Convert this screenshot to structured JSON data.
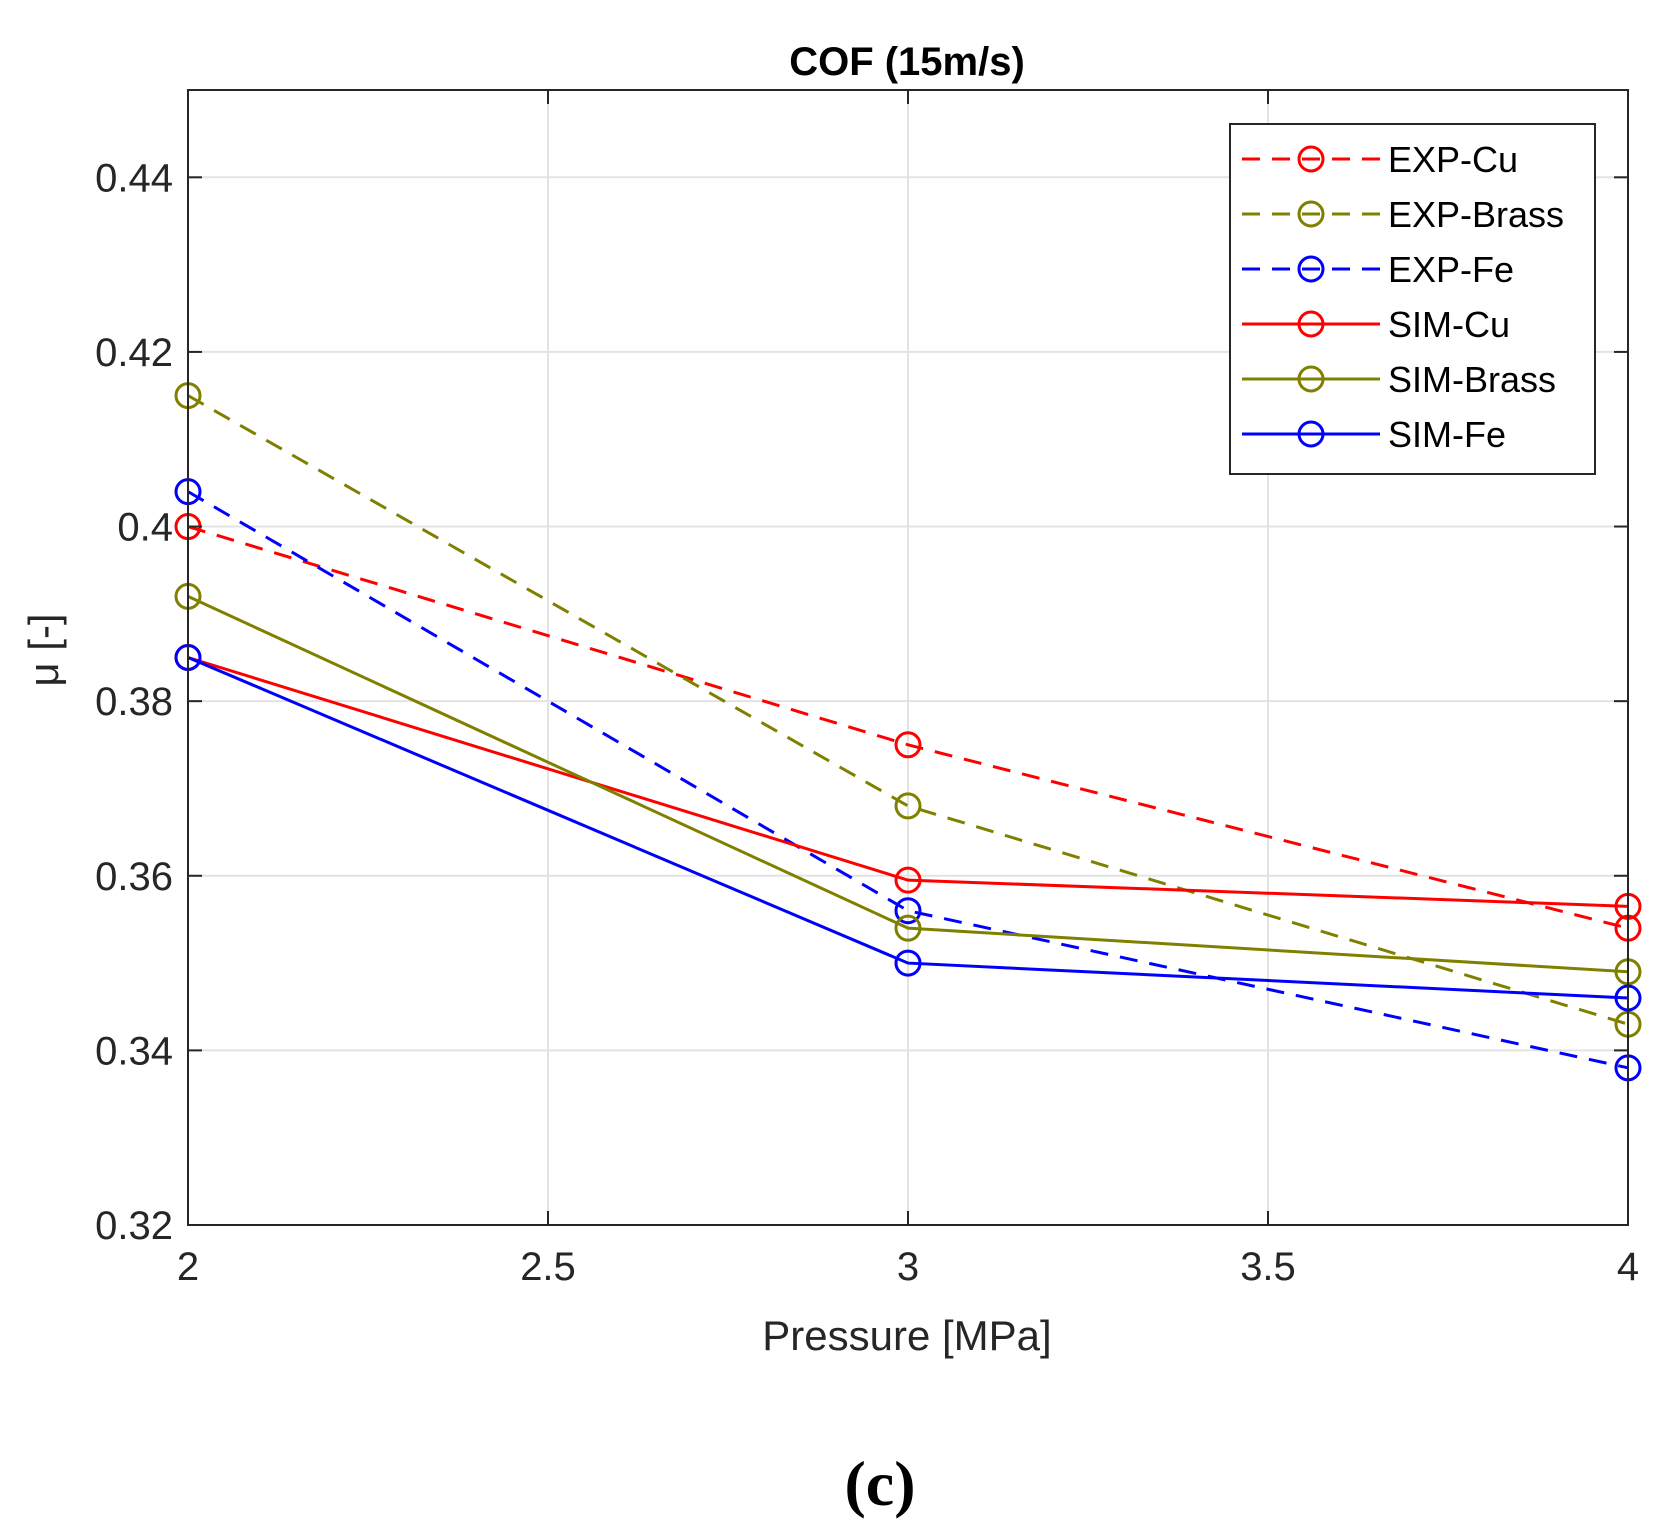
{
  "chart_data": {
    "type": "line",
    "title": "COF (15m/s)",
    "xlabel": "Pressure [MPa]",
    "ylabel": "μ [-]",
    "xlim": [
      2,
      4
    ],
    "ylim": [
      0.32,
      0.45
    ],
    "xticks": [
      2,
      2.5,
      3,
      3.5,
      4
    ],
    "xtick_labels": [
      "2",
      "2.5",
      "3",
      "3.5",
      "4"
    ],
    "yticks": [
      0.32,
      0.34,
      0.36,
      0.38,
      0.4,
      0.42,
      0.44
    ],
    "ytick_labels": [
      "0.32",
      "0.34",
      "0.36",
      "0.38",
      "0.4",
      "0.42",
      "0.44"
    ],
    "grid": true,
    "legend_position": "top-right",
    "x": [
      2,
      3,
      4
    ],
    "series": [
      {
        "name": "EXP-Cu",
        "values": [
          0.4,
          0.375,
          0.354
        ],
        "color": "#ff0000",
        "dash": "dashed",
        "marker": "circle"
      },
      {
        "name": "EXP-Brass",
        "values": [
          0.415,
          0.368,
          0.343
        ],
        "color": "#808000",
        "dash": "dashed",
        "marker": "circle"
      },
      {
        "name": "EXP-Fe",
        "values": [
          0.404,
          0.356,
          0.338
        ],
        "color": "#0000ff",
        "dash": "dashed",
        "marker": "circle"
      },
      {
        "name": "SIM-Cu",
        "values": [
          0.385,
          0.3595,
          0.3565
        ],
        "color": "#ff0000",
        "dash": "solid",
        "marker": "circle"
      },
      {
        "name": "SIM-Brass",
        "values": [
          0.392,
          0.354,
          0.349
        ],
        "color": "#808000",
        "dash": "solid",
        "marker": "circle"
      },
      {
        "name": "SIM-Fe",
        "values": [
          0.385,
          0.35,
          0.346
        ],
        "color": "#0000ff",
        "dash": "solid",
        "marker": "circle"
      }
    ]
  },
  "panel_label": "(c)"
}
